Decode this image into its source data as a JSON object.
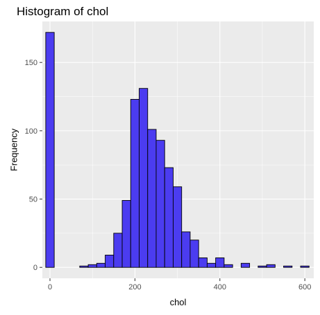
{
  "chart_data": {
    "type": "bar",
    "title": "Histogram of chol",
    "xlabel": "chol",
    "ylabel": "Frequency",
    "xlim": [
      -18,
      621
    ],
    "ylim": [
      -8,
      180
    ],
    "x_ticks": [
      0,
      200,
      400,
      600
    ],
    "y_ticks": [
      0,
      50,
      100,
      150
    ],
    "grid": true,
    "bin_width": 20,
    "bins": [
      {
        "x_start": -10,
        "x_end": 10,
        "count": 172
      },
      {
        "x_start": 10,
        "x_end": 30,
        "count": 0
      },
      {
        "x_start": 30,
        "x_end": 50,
        "count": 0
      },
      {
        "x_start": 50,
        "x_end": 70,
        "count": 0
      },
      {
        "x_start": 70,
        "x_end": 90,
        "count": 1
      },
      {
        "x_start": 90,
        "x_end": 110,
        "count": 2
      },
      {
        "x_start": 110,
        "x_end": 130,
        "count": 3
      },
      {
        "x_start": 130,
        "x_end": 150,
        "count": 9
      },
      {
        "x_start": 150,
        "x_end": 170,
        "count": 25
      },
      {
        "x_start": 170,
        "x_end": 190,
        "count": 49
      },
      {
        "x_start": 190,
        "x_end": 210,
        "count": 123
      },
      {
        "x_start": 210,
        "x_end": 230,
        "count": 131
      },
      {
        "x_start": 230,
        "x_end": 250,
        "count": 101
      },
      {
        "x_start": 250,
        "x_end": 270,
        "count": 93
      },
      {
        "x_start": 270,
        "x_end": 290,
        "count": 73
      },
      {
        "x_start": 290,
        "x_end": 310,
        "count": 59
      },
      {
        "x_start": 310,
        "x_end": 330,
        "count": 26
      },
      {
        "x_start": 330,
        "x_end": 350,
        "count": 20
      },
      {
        "x_start": 350,
        "x_end": 370,
        "count": 7
      },
      {
        "x_start": 370,
        "x_end": 390,
        "count": 3
      },
      {
        "x_start": 390,
        "x_end": 410,
        "count": 7
      },
      {
        "x_start": 410,
        "x_end": 430,
        "count": 2
      },
      {
        "x_start": 430,
        "x_end": 450,
        "count": 0
      },
      {
        "x_start": 450,
        "x_end": 470,
        "count": 3
      },
      {
        "x_start": 470,
        "x_end": 490,
        "count": 0
      },
      {
        "x_start": 490,
        "x_end": 510,
        "count": 1
      },
      {
        "x_start": 510,
        "x_end": 530,
        "count": 2
      },
      {
        "x_start": 530,
        "x_end": 550,
        "count": 0
      },
      {
        "x_start": 550,
        "x_end": 570,
        "count": 1
      },
      {
        "x_start": 570,
        "x_end": 590,
        "count": 0
      },
      {
        "x_start": 590,
        "x_end": 610,
        "count": 1
      }
    ],
    "colors": {
      "bar_fill": "#4B3CF0",
      "bar_stroke": "#000000",
      "panel_background": "#EBEBEB",
      "grid": "#FFFFFF"
    }
  }
}
